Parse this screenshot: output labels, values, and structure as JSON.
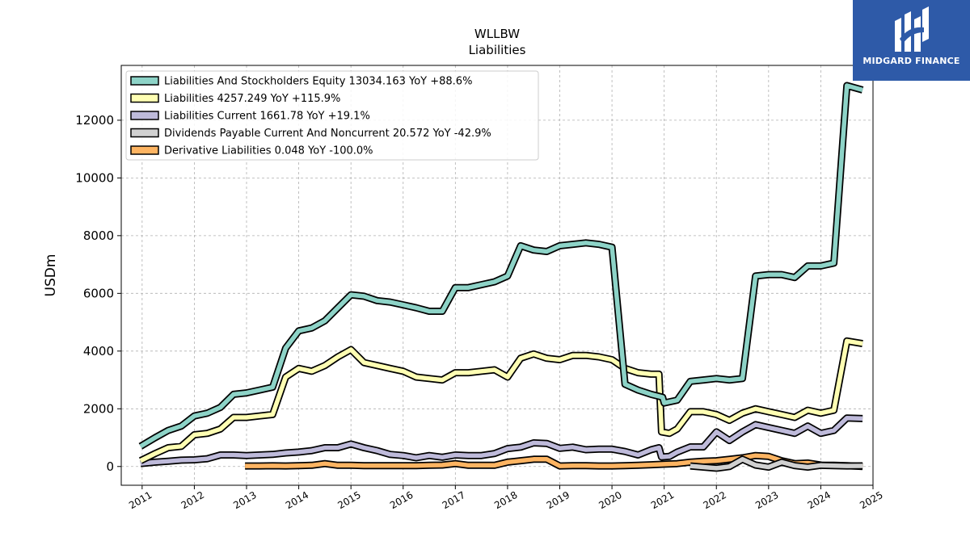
{
  "brand": {
    "name": "MIDGARD FINANCE",
    "color": "#2e5aa8"
  },
  "chart_data": {
    "type": "line",
    "title": "WLLBW",
    "subtitle": "Liabilities",
    "ylabel": "USDm",
    "xlabel": "",
    "xlim": [
      2010.6,
      2025.0
    ],
    "ylim": [
      -650,
      13900
    ],
    "yticks": [
      0,
      2000,
      4000,
      6000,
      8000,
      10000,
      12000
    ],
    "xticks": [
      "2011",
      "2012",
      "2013",
      "2014",
      "2015",
      "2016",
      "2017",
      "2018",
      "2019",
      "2020",
      "2021",
      "2022",
      "2023",
      "2024",
      "2025"
    ],
    "grid": true,
    "legend_position": "top-left",
    "series": [
      {
        "name": "Liabilities And Stockholders Equity",
        "legend": "Liabilities And Stockholders Equity  13034.163 YoY +88.6%",
        "color": "#8dd3c7",
        "points": [
          [
            2010.97,
            700
          ],
          [
            2011.25,
            1000
          ],
          [
            2011.5,
            1250
          ],
          [
            2011.75,
            1400
          ],
          [
            2012.0,
            1750
          ],
          [
            2012.25,
            1850
          ],
          [
            2012.5,
            2050
          ],
          [
            2012.75,
            2500
          ],
          [
            2013.0,
            2550
          ],
          [
            2013.25,
            2650
          ],
          [
            2013.5,
            2750
          ],
          [
            2013.75,
            4100
          ],
          [
            2014.0,
            4700
          ],
          [
            2014.25,
            4800
          ],
          [
            2014.5,
            5050
          ],
          [
            2014.75,
            5500
          ],
          [
            2015.0,
            5950
          ],
          [
            2015.25,
            5900
          ],
          [
            2015.5,
            5750
          ],
          [
            2015.75,
            5700
          ],
          [
            2016.0,
            5600
          ],
          [
            2016.25,
            5500
          ],
          [
            2016.5,
            5380
          ],
          [
            2016.75,
            5380
          ],
          [
            2017.0,
            6200
          ],
          [
            2017.25,
            6200
          ],
          [
            2017.5,
            6300
          ],
          [
            2017.75,
            6400
          ],
          [
            2018.0,
            6600
          ],
          [
            2018.25,
            7650
          ],
          [
            2018.5,
            7500
          ],
          [
            2018.75,
            7450
          ],
          [
            2019.0,
            7650
          ],
          [
            2019.25,
            7700
          ],
          [
            2019.5,
            7750
          ],
          [
            2019.75,
            7700
          ],
          [
            2020.0,
            7600
          ],
          [
            2020.25,
            2850
          ],
          [
            2020.5,
            2650
          ],
          [
            2020.75,
            2500
          ],
          [
            2020.97,
            2400
          ],
          [
            2021.0,
            2200
          ],
          [
            2021.25,
            2300
          ],
          [
            2021.5,
            2950
          ],
          [
            2021.75,
            3000
          ],
          [
            2022.0,
            3050
          ],
          [
            2022.25,
            3000
          ],
          [
            2022.5,
            3050
          ],
          [
            2022.75,
            6600
          ],
          [
            2023.0,
            6650
          ],
          [
            2023.25,
            6650
          ],
          [
            2023.5,
            6550
          ],
          [
            2023.75,
            6950
          ],
          [
            2024.0,
            6950
          ],
          [
            2024.25,
            7050
          ],
          [
            2024.5,
            13200
          ],
          [
            2024.8,
            13050
          ]
        ]
      },
      {
        "name": "Liabilities",
        "legend": "Liabilities  4257.249 YoY +115.9%",
        "color": "#ffffb3",
        "points": [
          [
            2010.97,
            200
          ],
          [
            2011.25,
            450
          ],
          [
            2011.5,
            650
          ],
          [
            2011.75,
            700
          ],
          [
            2012.0,
            1100
          ],
          [
            2012.25,
            1150
          ],
          [
            2012.5,
            1300
          ],
          [
            2012.75,
            1700
          ],
          [
            2013.0,
            1700
          ],
          [
            2013.25,
            1750
          ],
          [
            2013.5,
            1800
          ],
          [
            2013.75,
            3100
          ],
          [
            2014.0,
            3400
          ],
          [
            2014.25,
            3300
          ],
          [
            2014.5,
            3500
          ],
          [
            2014.75,
            3800
          ],
          [
            2015.0,
            4050
          ],
          [
            2015.25,
            3600
          ],
          [
            2015.5,
            3500
          ],
          [
            2015.75,
            3400
          ],
          [
            2016.0,
            3300
          ],
          [
            2016.25,
            3100
          ],
          [
            2016.5,
            3050
          ],
          [
            2016.75,
            3000
          ],
          [
            2017.0,
            3250
          ],
          [
            2017.25,
            3250
          ],
          [
            2017.5,
            3300
          ],
          [
            2017.75,
            3350
          ],
          [
            2018.0,
            3100
          ],
          [
            2018.25,
            3750
          ],
          [
            2018.5,
            3900
          ],
          [
            2018.75,
            3750
          ],
          [
            2019.0,
            3700
          ],
          [
            2019.25,
            3850
          ],
          [
            2019.5,
            3850
          ],
          [
            2019.75,
            3800
          ],
          [
            2020.0,
            3700
          ],
          [
            2020.25,
            3400
          ],
          [
            2020.5,
            3250
          ],
          [
            2020.75,
            3200
          ],
          [
            2020.9,
            3200
          ],
          [
            2020.95,
            1200
          ],
          [
            2021.1,
            1150
          ],
          [
            2021.25,
            1300
          ],
          [
            2021.5,
            1900
          ],
          [
            2021.75,
            1900
          ],
          [
            2022.0,
            1800
          ],
          [
            2022.25,
            1600
          ],
          [
            2022.5,
            1850
          ],
          [
            2022.75,
            2000
          ],
          [
            2023.0,
            1900
          ],
          [
            2023.25,
            1800
          ],
          [
            2023.5,
            1700
          ],
          [
            2023.75,
            1950
          ],
          [
            2024.0,
            1850
          ],
          [
            2024.25,
            1950
          ],
          [
            2024.5,
            4350
          ],
          [
            2024.8,
            4257
          ]
        ]
      },
      {
        "name": "Liabilities Current",
        "legend": "Liabilities Current  1661.78 YoY +19.1%",
        "color": "#bebada",
        "points": [
          [
            2010.97,
            100
          ],
          [
            2011.25,
            150
          ],
          [
            2011.5,
            180
          ],
          [
            2011.75,
            220
          ],
          [
            2012.0,
            230
          ],
          [
            2012.25,
            270
          ],
          [
            2012.5,
            400
          ],
          [
            2012.75,
            400
          ],
          [
            2013.0,
            380
          ],
          [
            2013.25,
            400
          ],
          [
            2013.5,
            420
          ],
          [
            2013.75,
            470
          ],
          [
            2014.0,
            500
          ],
          [
            2014.25,
            550
          ],
          [
            2014.5,
            650
          ],
          [
            2014.75,
            650
          ],
          [
            2015.0,
            780
          ],
          [
            2015.25,
            650
          ],
          [
            2015.5,
            550
          ],
          [
            2015.75,
            420
          ],
          [
            2016.0,
            380
          ],
          [
            2016.25,
            300
          ],
          [
            2016.5,
            380
          ],
          [
            2016.75,
            320
          ],
          [
            2017.0,
            400
          ],
          [
            2017.25,
            380
          ],
          [
            2017.5,
            380
          ],
          [
            2017.75,
            450
          ],
          [
            2018.0,
            620
          ],
          [
            2018.25,
            670
          ],
          [
            2018.5,
            820
          ],
          [
            2018.75,
            800
          ],
          [
            2019.0,
            630
          ],
          [
            2019.25,
            670
          ],
          [
            2019.5,
            580
          ],
          [
            2019.75,
            600
          ],
          [
            2020.0,
            600
          ],
          [
            2020.25,
            520
          ],
          [
            2020.5,
            400
          ],
          [
            2020.75,
            580
          ],
          [
            2020.9,
            650
          ],
          [
            2020.95,
            330
          ],
          [
            2021.1,
            350
          ],
          [
            2021.25,
            500
          ],
          [
            2021.5,
            680
          ],
          [
            2021.75,
            680
          ],
          [
            2022.0,
            1200
          ],
          [
            2022.25,
            900
          ],
          [
            2022.5,
            1200
          ],
          [
            2022.75,
            1450
          ],
          [
            2023.0,
            1350
          ],
          [
            2023.25,
            1250
          ],
          [
            2023.5,
            1150
          ],
          [
            2023.75,
            1400
          ],
          [
            2024.0,
            1150
          ],
          [
            2024.25,
            1250
          ],
          [
            2024.5,
            1680
          ],
          [
            2024.8,
            1662
          ]
        ]
      },
      {
        "name": "Dividends Payable Current And Noncurrent",
        "legend": "Dividends Payable Current And Noncurrent  20.572 YoY -42.9%",
        "color": "#d0d0d0",
        "points": [
          [
            2021.5,
            20
          ],
          [
            2021.75,
            -20
          ],
          [
            2022.0,
            -60
          ],
          [
            2022.25,
            0
          ],
          [
            2022.5,
            250
          ],
          [
            2022.75,
            50
          ],
          [
            2023.0,
            -20
          ],
          [
            2023.25,
            150
          ],
          [
            2023.5,
            30
          ],
          [
            2023.75,
            -20
          ],
          [
            2024.0,
            40
          ],
          [
            2024.25,
            30
          ],
          [
            2024.5,
            20
          ],
          [
            2024.8,
            21
          ]
        ]
      },
      {
        "name": "Derivative Liabilities",
        "legend": "Derivative Liabilities  0.048 YoY -100.0%",
        "color": "#fdb462",
        "points": [
          [
            2012.97,
            20
          ],
          [
            2013.25,
            20
          ],
          [
            2013.5,
            25
          ],
          [
            2013.75,
            20
          ],
          [
            2014.0,
            30
          ],
          [
            2014.25,
            40
          ],
          [
            2014.5,
            100
          ],
          [
            2014.75,
            40
          ],
          [
            2015.0,
            40
          ],
          [
            2015.25,
            30
          ],
          [
            2015.5,
            30
          ],
          [
            2015.75,
            30
          ],
          [
            2016.0,
            30
          ],
          [
            2016.25,
            30
          ],
          [
            2016.5,
            40
          ],
          [
            2016.75,
            50
          ],
          [
            2017.0,
            100
          ],
          [
            2017.25,
            40
          ],
          [
            2017.5,
            40
          ],
          [
            2017.75,
            40
          ],
          [
            2018.0,
            150
          ],
          [
            2018.25,
            200
          ],
          [
            2018.5,
            250
          ],
          [
            2018.75,
            250
          ],
          [
            2019.0,
            20
          ],
          [
            2019.25,
            30
          ],
          [
            2019.5,
            30
          ],
          [
            2019.75,
            20
          ],
          [
            2020.0,
            20
          ],
          [
            2020.25,
            30
          ],
          [
            2020.5,
            40
          ],
          [
            2020.75,
            60
          ],
          [
            2021.0,
            80
          ],
          [
            2021.25,
            100
          ],
          [
            2021.5,
            150
          ],
          [
            2021.75,
            180
          ],
          [
            2022.0,
            200
          ],
          [
            2022.25,
            250
          ],
          [
            2022.5,
            300
          ],
          [
            2022.75,
            380
          ],
          [
            2023.0,
            350
          ],
          [
            2023.25,
            200
          ],
          [
            2023.5,
            100
          ],
          [
            2023.75,
            120
          ],
          [
            2024.0,
            50
          ],
          [
            2024.25,
            40
          ],
          [
            2024.5,
            30
          ],
          [
            2024.8,
            0
          ]
        ]
      }
    ]
  }
}
